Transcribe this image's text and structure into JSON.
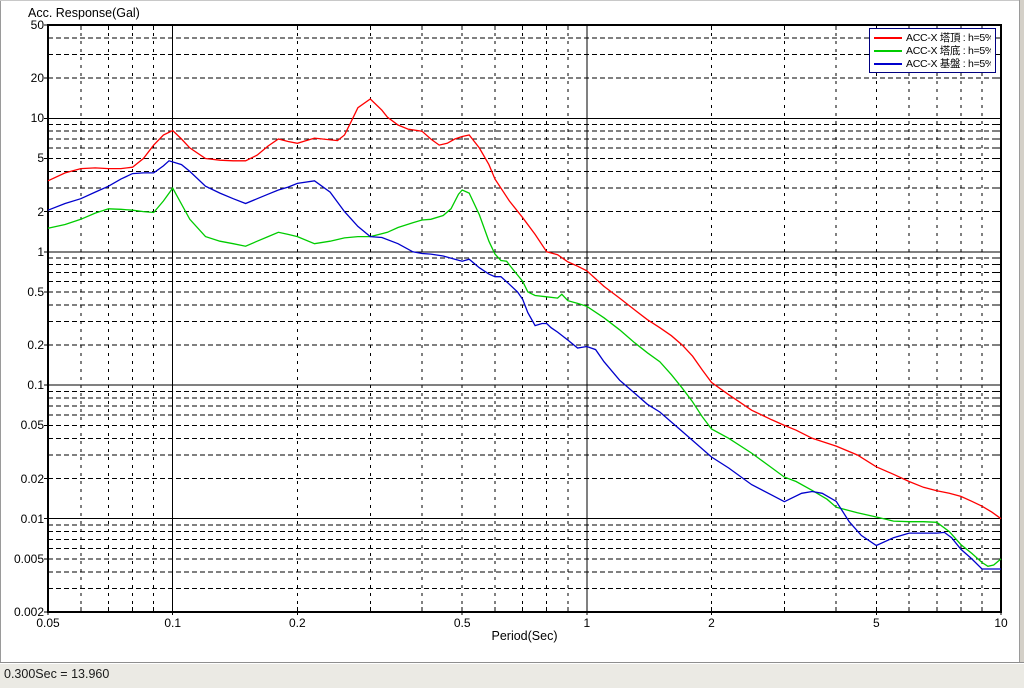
{
  "status_bar": {
    "text": "0.300Sec = 13.960"
  },
  "colors": {
    "window_bg": "#d4d0c8",
    "canvas_bg": "#ffffff",
    "status_bar_bg": "#ebeae4",
    "grid_line": "#000000",
    "legend_border": "#000080",
    "series_top": "#ff0000",
    "series_bottom": "#00cc00",
    "series_base": "#0000cc"
  },
  "chart_data": {
    "type": "line",
    "title": "",
    "ylabel": "Acc. Response(Gal)",
    "xlabel": "Period(Sec)",
    "x_scale": "log",
    "y_scale": "log",
    "xlim": [
      0.05,
      10
    ],
    "ylim": [
      0.002,
      50
    ],
    "x_tick_labels": [
      "0.05",
      "0.1",
      "0.2",
      "0.5",
      "1",
      "2",
      "5",
      "10"
    ],
    "y_tick_labels": [
      "50",
      "20",
      "10",
      "5",
      "2",
      "1",
      "0.5",
      "0.2",
      "0.1",
      "0.05",
      "0.02",
      "0.01",
      "0.005",
      "0.002"
    ],
    "grid": {
      "major": "solid",
      "minor": "dashed",
      "minor_positions": "log integer multiples"
    },
    "legend": {
      "position": "top-right"
    },
    "cursor_readout": {
      "period_sec": 0.3,
      "value": 13.96
    },
    "series": [
      {
        "name": "ACC-X 塔頂 : h=5%",
        "color": "#ff0000",
        "points": [
          [
            0.05,
            3.4
          ],
          [
            0.055,
            3.9
          ],
          [
            0.06,
            4.2
          ],
          [
            0.065,
            4.25
          ],
          [
            0.07,
            4.2
          ],
          [
            0.075,
            4.2
          ],
          [
            0.08,
            4.3
          ],
          [
            0.085,
            5.0
          ],
          [
            0.09,
            6.3
          ],
          [
            0.095,
            7.5
          ],
          [
            0.1,
            8.1
          ],
          [
            0.105,
            7.0
          ],
          [
            0.11,
            6.0
          ],
          [
            0.12,
            5.0
          ],
          [
            0.13,
            4.85
          ],
          [
            0.14,
            4.8
          ],
          [
            0.15,
            4.8
          ],
          [
            0.16,
            5.3
          ],
          [
            0.17,
            6.2
          ],
          [
            0.18,
            7.0
          ],
          [
            0.19,
            6.7
          ],
          [
            0.2,
            6.5
          ],
          [
            0.21,
            6.8
          ],
          [
            0.22,
            7.1
          ],
          [
            0.23,
            7.0
          ],
          [
            0.25,
            6.8
          ],
          [
            0.26,
            7.5
          ],
          [
            0.27,
            9.5
          ],
          [
            0.28,
            12.0
          ],
          [
            0.3,
            13.96
          ],
          [
            0.32,
            11.5
          ],
          [
            0.33,
            10.2
          ],
          [
            0.35,
            8.9
          ],
          [
            0.37,
            8.3
          ],
          [
            0.4,
            8.0
          ],
          [
            0.42,
            7.0
          ],
          [
            0.44,
            6.3
          ],
          [
            0.46,
            6.5
          ],
          [
            0.48,
            7.0
          ],
          [
            0.5,
            7.3
          ],
          [
            0.52,
            7.5
          ],
          [
            0.55,
            6.0
          ],
          [
            0.58,
            4.5
          ],
          [
            0.6,
            3.5
          ],
          [
            0.65,
            2.4
          ],
          [
            0.7,
            1.8
          ],
          [
            0.75,
            1.35
          ],
          [
            0.8,
            1.0
          ],
          [
            0.85,
            0.95
          ],
          [
            0.9,
            0.84
          ],
          [
            0.95,
            0.78
          ],
          [
            1.0,
            0.72
          ],
          [
            1.1,
            0.55
          ],
          [
            1.2,
            0.45
          ],
          [
            1.3,
            0.37
          ],
          [
            1.4,
            0.31
          ],
          [
            1.5,
            0.27
          ],
          [
            1.6,
            0.235
          ],
          [
            1.7,
            0.2
          ],
          [
            1.8,
            0.165
          ],
          [
            1.9,
            0.13
          ],
          [
            2.0,
            0.105
          ],
          [
            2.2,
            0.085
          ],
          [
            2.5,
            0.065
          ],
          [
            2.8,
            0.055
          ],
          [
            3.0,
            0.05
          ],
          [
            3.2,
            0.046
          ],
          [
            3.5,
            0.04
          ],
          [
            4.0,
            0.035
          ],
          [
            4.5,
            0.03
          ],
          [
            5.0,
            0.0245
          ],
          [
            5.5,
            0.0215
          ],
          [
            6.0,
            0.019
          ],
          [
            6.5,
            0.0172
          ],
          [
            7.0,
            0.0162
          ],
          [
            7.5,
            0.0155
          ],
          [
            8.0,
            0.0147
          ],
          [
            8.5,
            0.0135
          ],
          [
            9.0,
            0.0124
          ],
          [
            9.5,
            0.0112
          ],
          [
            10,
            0.01
          ]
        ]
      },
      {
        "name": "ACC-X 塔底 : h=5%",
        "color": "#00cc00",
        "points": [
          [
            0.05,
            1.5
          ],
          [
            0.055,
            1.6
          ],
          [
            0.06,
            1.75
          ],
          [
            0.065,
            1.95
          ],
          [
            0.07,
            2.1
          ],
          [
            0.075,
            2.08
          ],
          [
            0.08,
            2.05
          ],
          [
            0.085,
            2.0
          ],
          [
            0.09,
            1.97
          ],
          [
            0.095,
            2.4
          ],
          [
            0.1,
            3.0
          ],
          [
            0.11,
            1.75
          ],
          [
            0.12,
            1.3
          ],
          [
            0.13,
            1.2
          ],
          [
            0.14,
            1.15
          ],
          [
            0.15,
            1.1
          ],
          [
            0.16,
            1.2
          ],
          [
            0.17,
            1.3
          ],
          [
            0.18,
            1.4
          ],
          [
            0.19,
            1.35
          ],
          [
            0.2,
            1.3
          ],
          [
            0.22,
            1.15
          ],
          [
            0.24,
            1.2
          ],
          [
            0.26,
            1.27
          ],
          [
            0.28,
            1.3
          ],
          [
            0.3,
            1.3
          ],
          [
            0.33,
            1.4
          ],
          [
            0.35,
            1.52
          ],
          [
            0.38,
            1.65
          ],
          [
            0.4,
            1.73
          ],
          [
            0.42,
            1.75
          ],
          [
            0.45,
            1.87
          ],
          [
            0.47,
            2.1
          ],
          [
            0.49,
            2.7
          ],
          [
            0.5,
            2.9
          ],
          [
            0.52,
            2.75
          ],
          [
            0.55,
            1.9
          ],
          [
            0.58,
            1.2
          ],
          [
            0.6,
            0.96
          ],
          [
            0.62,
            0.86
          ],
          [
            0.64,
            0.85
          ],
          [
            0.66,
            0.75
          ],
          [
            0.7,
            0.6
          ],
          [
            0.72,
            0.5
          ],
          [
            0.75,
            0.47
          ],
          [
            0.8,
            0.46
          ],
          [
            0.85,
            0.45
          ],
          [
            0.87,
            0.48
          ],
          [
            0.9,
            0.43
          ],
          [
            0.95,
            0.41
          ],
          [
            1.0,
            0.39
          ],
          [
            1.1,
            0.32
          ],
          [
            1.2,
            0.26
          ],
          [
            1.3,
            0.21
          ],
          [
            1.4,
            0.175
          ],
          [
            1.5,
            0.15
          ],
          [
            1.6,
            0.12
          ],
          [
            1.7,
            0.095
          ],
          [
            1.8,
            0.075
          ],
          [
            1.9,
            0.058
          ],
          [
            2.0,
            0.047
          ],
          [
            2.2,
            0.04
          ],
          [
            2.5,
            0.031
          ],
          [
            2.8,
            0.024
          ],
          [
            3.0,
            0.0205
          ],
          [
            3.2,
            0.019
          ],
          [
            3.5,
            0.0163
          ],
          [
            3.8,
            0.014
          ],
          [
            4.0,
            0.0122
          ],
          [
            4.5,
            0.0111
          ],
          [
            5.0,
            0.0103
          ],
          [
            5.5,
            0.0096
          ],
          [
            6.0,
            0.0095
          ],
          [
            6.5,
            0.0095
          ],
          [
            7.0,
            0.0094
          ],
          [
            7.5,
            0.008
          ],
          [
            8.0,
            0.0064
          ],
          [
            8.5,
            0.0055
          ],
          [
            9.0,
            0.0047
          ],
          [
            9.3,
            0.0044
          ],
          [
            9.6,
            0.0045
          ],
          [
            10,
            0.005
          ]
        ]
      },
      {
        "name": "ACC-X 基盤 : h=5%",
        "color": "#0000cc",
        "points": [
          [
            0.05,
            2.05
          ],
          [
            0.055,
            2.3
          ],
          [
            0.06,
            2.5
          ],
          [
            0.065,
            2.8
          ],
          [
            0.07,
            3.1
          ],
          [
            0.075,
            3.5
          ],
          [
            0.08,
            3.85
          ],
          [
            0.085,
            3.9
          ],
          [
            0.09,
            3.9
          ],
          [
            0.095,
            4.4
          ],
          [
            0.098,
            4.8
          ],
          [
            0.105,
            4.5
          ],
          [
            0.11,
            4.0
          ],
          [
            0.12,
            3.1
          ],
          [
            0.13,
            2.75
          ],
          [
            0.14,
            2.5
          ],
          [
            0.15,
            2.3
          ],
          [
            0.16,
            2.5
          ],
          [
            0.17,
            2.7
          ],
          [
            0.18,
            2.9
          ],
          [
            0.19,
            3.05
          ],
          [
            0.2,
            3.25
          ],
          [
            0.22,
            3.4
          ],
          [
            0.24,
            2.8
          ],
          [
            0.26,
            2.0
          ],
          [
            0.28,
            1.55
          ],
          [
            0.3,
            1.3
          ],
          [
            0.32,
            1.28
          ],
          [
            0.35,
            1.15
          ],
          [
            0.38,
            1.0
          ],
          [
            0.4,
            0.97
          ],
          [
            0.42,
            0.96
          ],
          [
            0.45,
            0.93
          ],
          [
            0.48,
            0.88
          ],
          [
            0.5,
            0.85
          ],
          [
            0.52,
            0.88
          ],
          [
            0.55,
            0.76
          ],
          [
            0.58,
            0.68
          ],
          [
            0.6,
            0.65
          ],
          [
            0.62,
            0.65
          ],
          [
            0.65,
            0.57
          ],
          [
            0.68,
            0.5
          ],
          [
            0.7,
            0.44
          ],
          [
            0.72,
            0.35
          ],
          [
            0.75,
            0.28
          ],
          [
            0.78,
            0.29
          ],
          [
            0.8,
            0.29
          ],
          [
            0.82,
            0.27
          ],
          [
            0.85,
            0.25
          ],
          [
            0.9,
            0.218
          ],
          [
            0.95,
            0.19
          ],
          [
            1.0,
            0.195
          ],
          [
            1.05,
            0.185
          ],
          [
            1.1,
            0.15
          ],
          [
            1.2,
            0.109
          ],
          [
            1.3,
            0.088
          ],
          [
            1.4,
            0.072
          ],
          [
            1.5,
            0.063
          ],
          [
            1.7,
            0.045
          ],
          [
            2.0,
            0.029
          ],
          [
            2.2,
            0.024
          ],
          [
            2.5,
            0.018
          ],
          [
            2.8,
            0.015
          ],
          [
            3.0,
            0.0134
          ],
          [
            3.3,
            0.0155
          ],
          [
            3.5,
            0.016
          ],
          [
            3.7,
            0.0155
          ],
          [
            4.0,
            0.0135
          ],
          [
            4.3,
            0.0095
          ],
          [
            4.6,
            0.0075
          ],
          [
            5.0,
            0.0063
          ],
          [
            5.5,
            0.0072
          ],
          [
            6.0,
            0.0078
          ],
          [
            6.5,
            0.0078
          ],
          [
            7.0,
            0.0078
          ],
          [
            7.3,
            0.0079
          ],
          [
            7.6,
            0.0072
          ],
          [
            8.0,
            0.0059
          ],
          [
            8.5,
            0.005
          ],
          [
            9.0,
            0.0042
          ],
          [
            9.5,
            0.0042
          ],
          [
            10,
            0.0042
          ]
        ]
      }
    ]
  }
}
